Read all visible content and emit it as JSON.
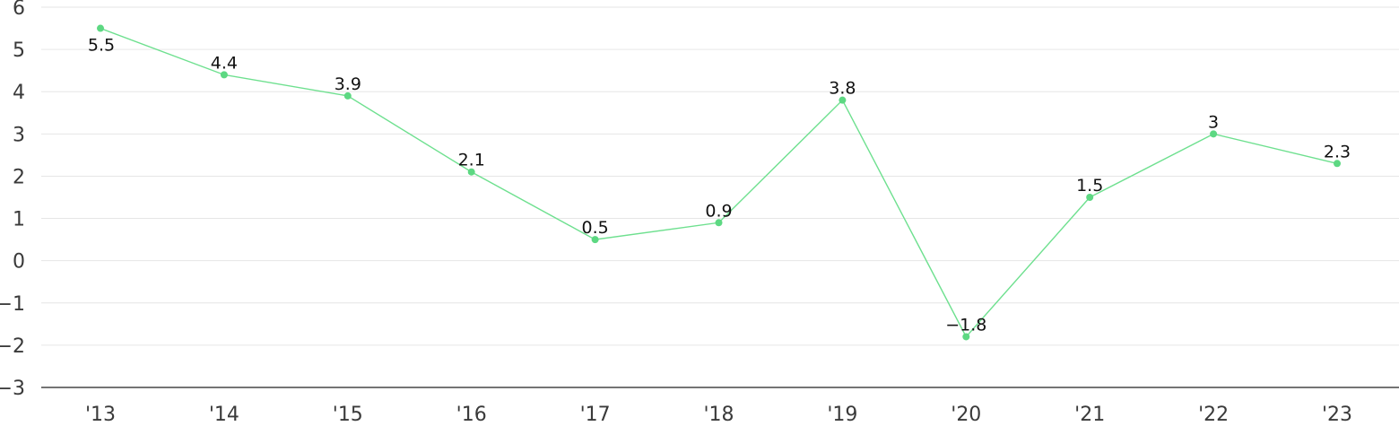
{
  "chart_data": {
    "type": "line",
    "title": "",
    "xlabel": "",
    "ylabel": "",
    "categories": [
      "'13",
      "'14",
      "'15",
      "'16",
      "'17",
      "'18",
      "'19",
      "'20",
      "'21",
      "'22",
      "'23"
    ],
    "series": [
      {
        "values": [
          5.5,
          4.4,
          3.9,
          2.1,
          0.5,
          0.9,
          3.8,
          -1.8,
          1.5,
          3,
          2.3
        ],
        "labels": [
          "5.5",
          "4.4",
          "3.9",
          "2.1",
          "0.5",
          "0.9",
          "3.8",
          "−1.8",
          "1.5",
          "3",
          "2.3"
        ]
      }
    ],
    "ylim": [
      -3,
      6
    ],
    "yticks": [
      6,
      5,
      4,
      3,
      2,
      1,
      0,
      -1,
      -2,
      -3
    ],
    "ytick_labels": [
      "6",
      "5",
      "4",
      "3",
      "2",
      "1",
      "0",
      "−1",
      "−2",
      "−3"
    ],
    "grid": true,
    "legend": "none",
    "colors": {
      "line": "#6ee08f",
      "marker": "#5dd882",
      "grid": "#e6e6e6",
      "baseline": "#222222"
    }
  }
}
